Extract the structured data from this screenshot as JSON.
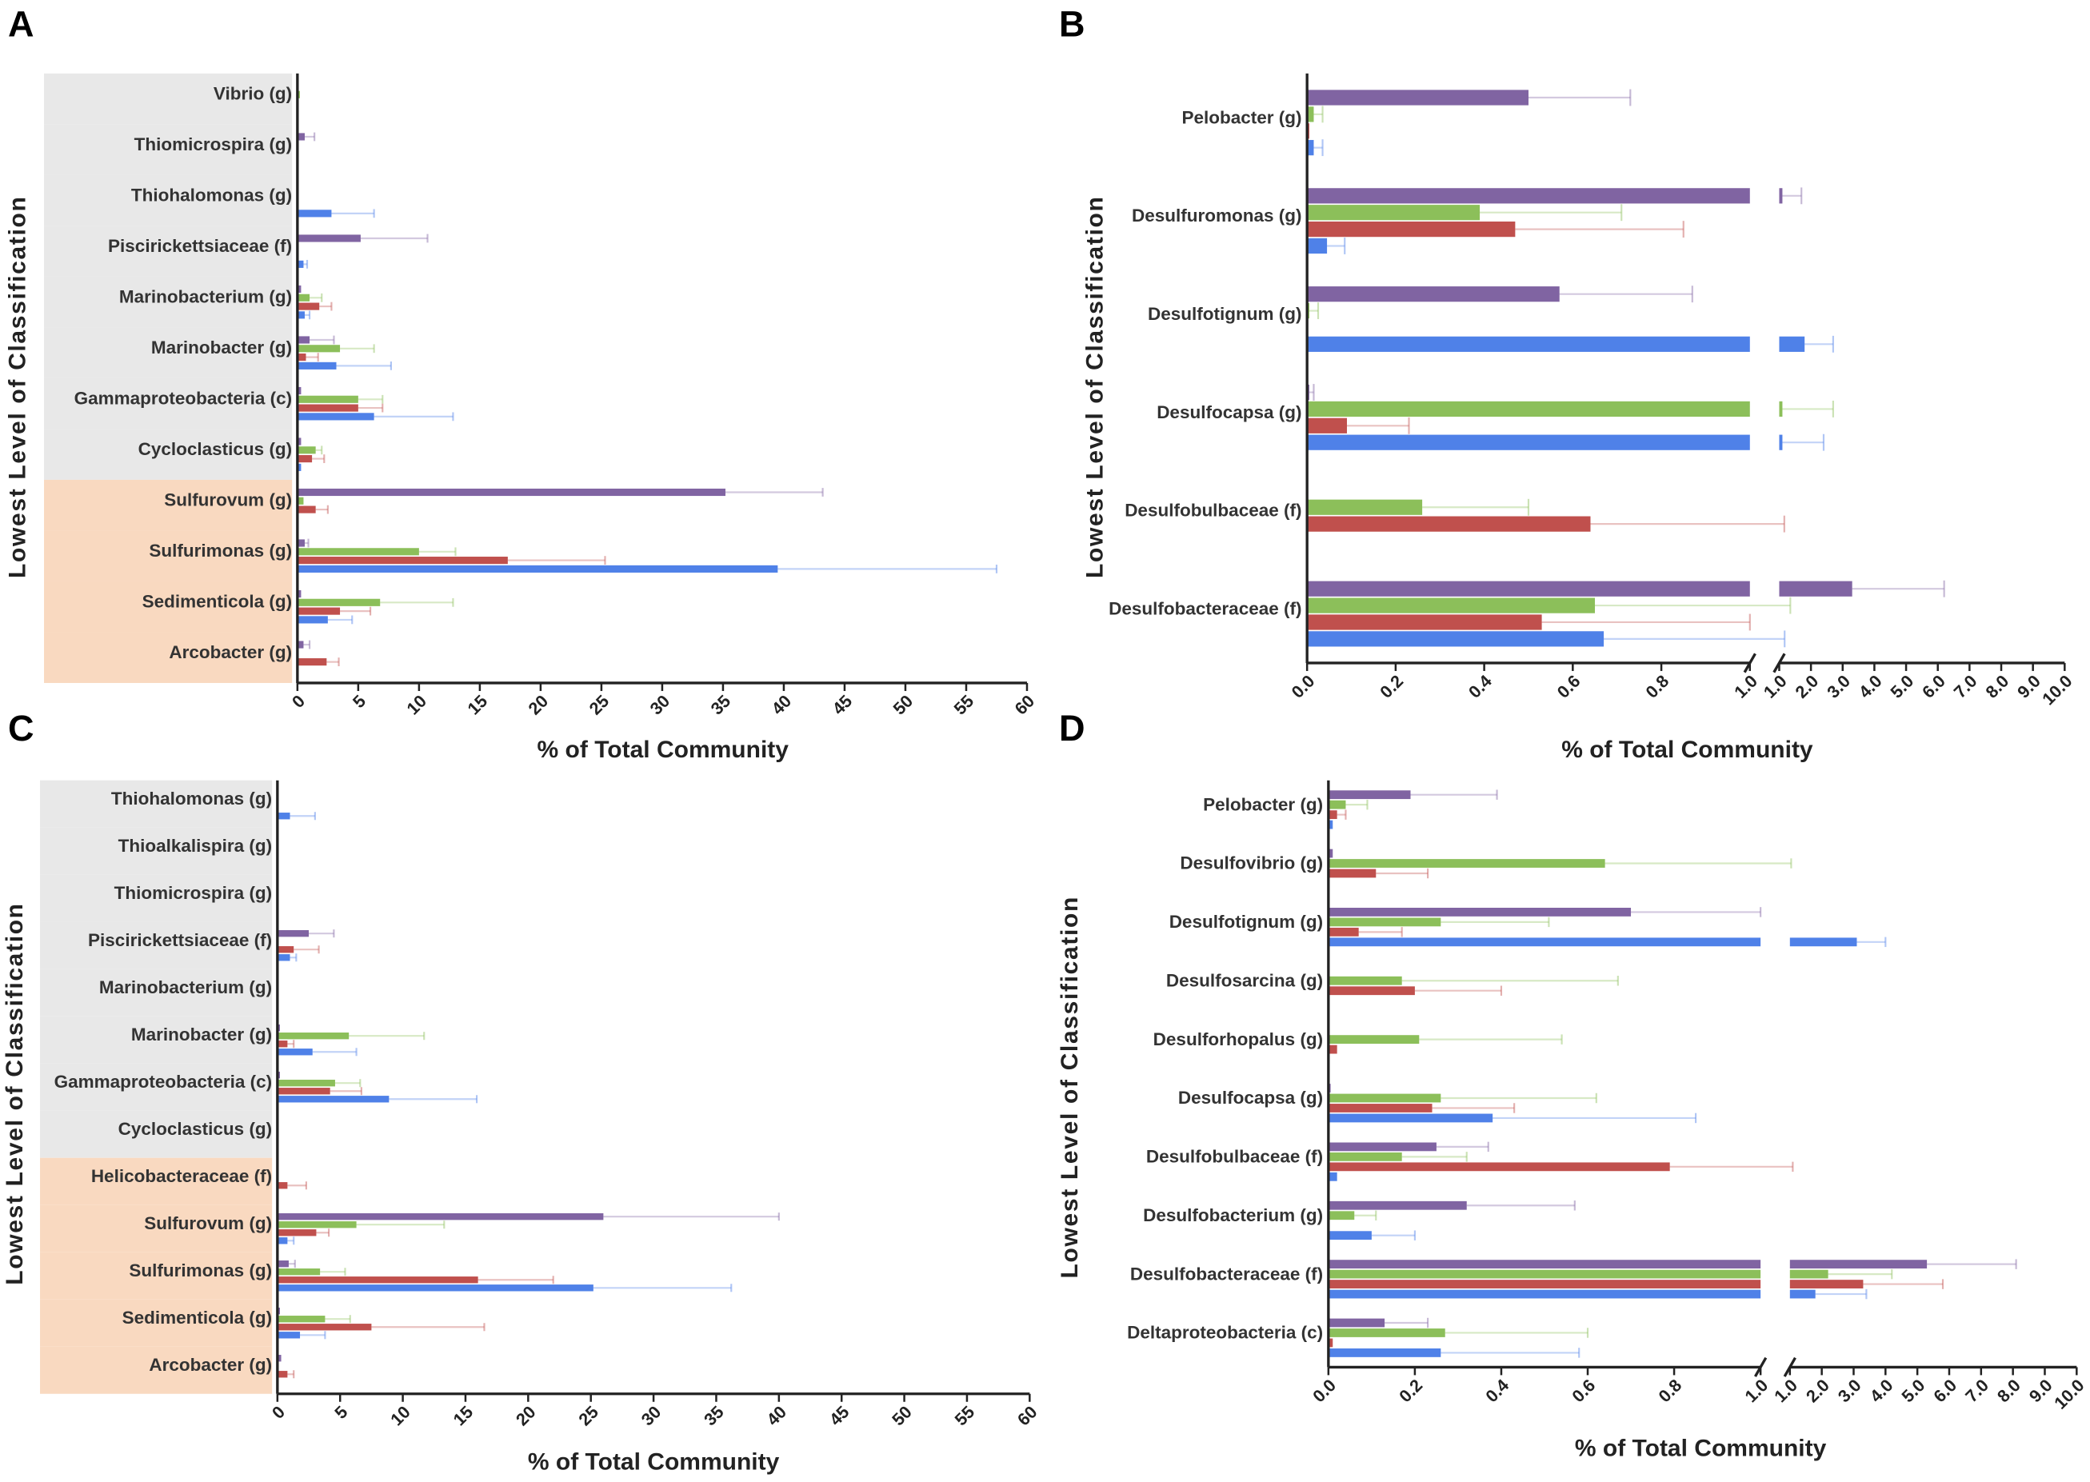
{
  "chart_data": [
    {
      "type": "bar",
      "orientation": "horizontal",
      "panel": "A",
      "ylabel": "Lowest  Level of Classification",
      "xlabel": "% of  Total Community",
      "categories": [
        "Vibrio (g)",
        "Thiomicrospira (g)",
        "Thiohalomonas (g)",
        "Piscirickettsiaceae (f)",
        "Marinobacterium (g)",
        "Marinobacter (g)",
        "Gammaproteobacteria (c)",
        "Cycloclasticus (g)",
        "Sulfurovum (g)",
        "Sulfurimonas (g)",
        "Sedimenticola (g)",
        "Arcobacter (g)"
      ],
      "category_colors": [
        "#e8e8e8",
        "#e8e8e8",
        "#e8e8e8",
        "#e8e8e8",
        "#e8e8e8",
        "#e8e8e8",
        "#e8e8e8",
        "#e8e8e8",
        "#f9d9c0",
        "#f9d9c0",
        "#f9d9c0",
        "#f9d9c0"
      ],
      "series": [
        {
          "color": "#8064a2",
          "values": [
            0,
            0.6,
            0,
            5.2,
            0.3,
            1,
            0.3,
            0.3,
            35.2,
            0.6,
            0.3,
            0.5
          ],
          "errors": [
            0,
            0.8,
            0,
            5.5,
            0,
            2,
            0,
            0,
            8,
            0.3,
            0,
            0.5
          ]
        },
        {
          "color": "#8cbf5a",
          "values": [
            0.2,
            0,
            0,
            0,
            1,
            3.5,
            5,
            1.5,
            0.5,
            10,
            6.8,
            0
          ],
          "errors": [
            0,
            0,
            0,
            0,
            1,
            2.8,
            2,
            0.5,
            0,
            3,
            6,
            0
          ]
        },
        {
          "color": "#c0504d",
          "values": [
            0,
            0,
            0,
            0,
            1.8,
            0.7,
            5,
            1.2,
            1.5,
            17.3,
            3.5,
            2.4
          ],
          "errors": [
            0,
            0,
            0,
            0,
            1,
            1,
            2,
            1,
            1,
            8,
            2.5,
            1
          ]
        },
        {
          "color": "#4f81e8",
          "values": [
            0,
            0,
            2.8,
            0.5,
            0.6,
            3.2,
            6.3,
            0.3,
            0,
            39.5,
            2.5,
            0
          ],
          "errors": [
            0,
            0,
            3.5,
            0.3,
            0.4,
            4.5,
            6.5,
            0,
            0,
            18,
            2,
            0
          ]
        }
      ],
      "xlim": [
        0,
        60
      ],
      "xticks": [
        0,
        5,
        10,
        15,
        20,
        25,
        30,
        35,
        40,
        45,
        50,
        55,
        60
      ]
    },
    {
      "type": "bar",
      "orientation": "horizontal",
      "panel": "B",
      "ylabel": "Lowest Level of  Classification",
      "xlabel": "% of  Total Community",
      "categories": [
        "Pelobacter (g)",
        "Desulfuromonas (g)",
        "Desulfotignum (g)",
        "Desulfocapsa (g)",
        "Desulfobulbaceae (f)",
        "Desulfobacteraceae (f)"
      ],
      "series": [
        {
          "color": "#8064a2",
          "values": [
            0.5,
            1.1,
            0.57,
            0.005,
            0,
            3.3
          ],
          "errors": [
            0.23,
            0.6,
            0.3,
            0.01,
            0,
            2.9
          ]
        },
        {
          "color": "#8cbf5a",
          "values": [
            0.015,
            0.39,
            0.005,
            1.1,
            0.26,
            0.65
          ],
          "errors": [
            0.02,
            0.32,
            0.02,
            1.6,
            0.24,
            0.7
          ]
        },
        {
          "color": "#c0504d",
          "values": [
            0.005,
            0.47,
            0,
            0.09,
            0.64,
            0.53
          ],
          "errors": [
            0,
            0.38,
            0,
            0.14,
            0.52,
            0.47
          ]
        },
        {
          "color": "#4f81e8",
          "values": [
            0.015,
            0.045,
            1.8,
            1.1,
            0,
            0.67
          ],
          "errors": [
            0.02,
            0.04,
            0.9,
            1.3,
            0,
            0.5
          ]
        }
      ],
      "xlim": [
        0,
        1
      ],
      "xticks": [
        {
          "value": 0,
          "label": "0.0"
        },
        0.2,
        0.4,
        0.6,
        0.8,
        {
          "value": 1,
          "label": "1.0"
        }
      ],
      "x2lim": [
        1,
        10
      ],
      "x2ticks": [
        {
          "value": 1,
          "label": "1.0"
        },
        {
          "value": 2,
          "label": "2.0"
        },
        {
          "value": 3,
          "label": "3.0"
        },
        {
          "value": 4,
          "label": "4.0"
        },
        {
          "value": 5,
          "label": "5.0"
        },
        {
          "value": 6,
          "label": "6.0"
        },
        {
          "value": 7,
          "label": "7.0"
        },
        {
          "value": 8,
          "label": "8.0"
        },
        {
          "value": 9,
          "label": "9.0"
        },
        {
          "value": 10,
          "label": "10.0"
        }
      ]
    },
    {
      "type": "bar",
      "orientation": "horizontal",
      "panel": "C",
      "ylabel": "Lowest  Level of Classification",
      "xlabel": "% of  Total Community",
      "categories": [
        "Thiohalomonas (g)",
        "Thioalkalispira (g)",
        "Thiomicrospira (g)",
        "Piscirickettsiaceae (f)",
        "Marinobacterium (g)",
        "Marinobacter (g)",
        "Gammaproteobacteria (c)",
        "Cycloclasticus (g)",
        "Helicobacteraceae (f)",
        "Sulfurovum (g)",
        "Sulfurimonas (g)",
        "Sedimenticola (g)",
        "Arcobacter (g)"
      ],
      "category_colors": [
        "#e8e8e8",
        "#e8e8e8",
        "#e8e8e8",
        "#e8e8e8",
        "#e8e8e8",
        "#e8e8e8",
        "#e8e8e8",
        "#e8e8e8",
        "#f9d9c0",
        "#f9d9c0",
        "#f9d9c0",
        "#f9d9c0",
        "#f9d9c0"
      ],
      "series": [
        {
          "color": "#8064a2",
          "values": [
            0,
            0,
            0,
            2.5,
            0,
            0.2,
            0.2,
            0,
            0,
            26,
            0.9,
            0.2,
            0.3
          ],
          "errors": [
            0,
            0,
            0,
            2,
            0,
            0,
            0,
            0,
            0,
            14,
            0.5,
            0,
            0
          ]
        },
        {
          "color": "#8cbf5a",
          "values": [
            0,
            0,
            0,
            0,
            0,
            5.7,
            4.6,
            0,
            0,
            6.3,
            3.4,
            3.8,
            0
          ],
          "errors": [
            0,
            0,
            0,
            0,
            0,
            6,
            2,
            0,
            0,
            7,
            2,
            2,
            0
          ]
        },
        {
          "color": "#c0504d",
          "values": [
            0,
            0,
            0,
            1.3,
            0,
            0.8,
            4.2,
            0,
            0.8,
            3.1,
            16,
            7.5,
            0.8
          ],
          "errors": [
            0,
            0,
            0,
            2,
            0,
            0.5,
            2.5,
            0,
            1.5,
            1,
            6,
            9,
            0.5
          ]
        },
        {
          "color": "#4f81e8",
          "values": [
            1,
            0,
            0,
            1,
            0,
            2.8,
            8.9,
            0,
            0,
            0.8,
            25.2,
            1.8,
            0
          ],
          "errors": [
            2,
            0,
            0,
            0.5,
            0,
            3.5,
            7,
            0,
            0,
            0.5,
            11,
            2,
            0
          ]
        }
      ],
      "xlim": [
        0,
        60
      ],
      "xticks": [
        0,
        5,
        10,
        15,
        20,
        25,
        30,
        35,
        40,
        45,
        50,
        55,
        60
      ]
    },
    {
      "type": "bar",
      "orientation": "horizontal",
      "panel": "D",
      "ylabel": "Lowest  Level of Classification",
      "xlabel": "% of  Total Community",
      "categories": [
        "Pelobacter (g)",
        "Desulfovibrio (g)",
        "Desulfotignum (g)",
        "Desulfosarcina (g)",
        "Desulforhopalus (g)",
        "Desulfocapsa (g)",
        "Desulfobulbaceae (f)",
        "Desulfobacterium (g)",
        "Desulfobacteraceae (f)",
        "Deltaproteobacteria (c)"
      ],
      "series": [
        {
          "color": "#8064a2",
          "values": [
            0.19,
            0.01,
            0.7,
            0,
            0,
            0.005,
            0.25,
            0.32,
            5.3,
            0.13
          ],
          "errors": [
            0.2,
            0,
            0.3,
            0,
            0,
            0,
            0.12,
            0.25,
            2.8,
            0.1
          ]
        },
        {
          "color": "#8cbf5a",
          "values": [
            0.04,
            0.64,
            0.26,
            0.17,
            0.21,
            0.26,
            0.17,
            0.06,
            2.2,
            0.27
          ],
          "errors": [
            0.05,
            0.4,
            0.25,
            0.5,
            0.33,
            0.36,
            0.15,
            0.05,
            2,
            0.33
          ]
        },
        {
          "color": "#c0504d",
          "values": [
            0.02,
            0.11,
            0.07,
            0.2,
            0.02,
            0.24,
            0.79,
            0,
            3.3,
            0.01
          ],
          "errors": [
            0.02,
            0.12,
            0.1,
            0.2,
            0,
            0.19,
            0.3,
            0,
            2.5,
            0
          ]
        },
        {
          "color": "#4f81e8",
          "values": [
            0.01,
            0,
            3.1,
            0,
            0,
            0.38,
            0.02,
            0.1,
            1.8,
            0.26
          ],
          "errors": [
            0,
            0,
            0.9,
            0,
            0,
            0.47,
            0,
            0.1,
            1.6,
            0.32
          ]
        }
      ],
      "xlim": [
        0,
        1
      ],
      "xticks": [
        {
          "value": 0,
          "label": "0.0"
        },
        0.2,
        0.4,
        0.6,
        0.8,
        {
          "value": 1,
          "label": "1.0"
        }
      ],
      "x2lim": [
        1,
        10
      ],
      "x2ticks": [
        {
          "value": 1,
          "label": "1.0"
        },
        {
          "value": 2,
          "label": "2.0"
        },
        {
          "value": 3,
          "label": "3.0"
        },
        {
          "value": 4,
          "label": "4.0"
        },
        {
          "value": 5,
          "label": "5.0"
        },
        {
          "value": 6,
          "label": "6.0"
        },
        {
          "value": 7,
          "label": "7.0"
        },
        {
          "value": 8,
          "label": "8.0"
        },
        {
          "value": 9,
          "label": "9.0"
        },
        {
          "value": 10,
          "label": "10.0"
        }
      ]
    }
  ]
}
